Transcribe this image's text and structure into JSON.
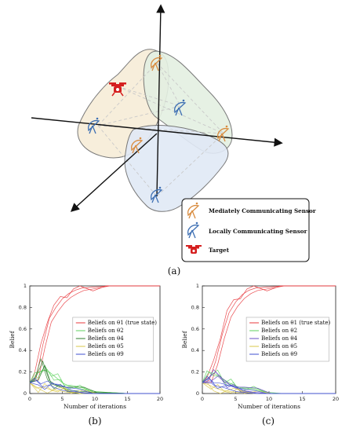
{
  "diagram": {
    "panel_label": "(a)",
    "legend": [
      {
        "label": "Mediately Communicating Sensor",
        "icon": "antenna-icon",
        "color": "#d98c3f"
      },
      {
        "label": "Locally Communicating Sensor",
        "icon": "antenna-icon",
        "color": "#3d6fb3"
      },
      {
        "label": "Target",
        "icon": "drone-icon",
        "color": "#d51f1f"
      }
    ],
    "region_colors": [
      "#f6ecd6",
      "#e6f1e6",
      "#e3ebf6"
    ]
  },
  "chart_data": [
    {
      "type": "line",
      "panel_label": "(b)",
      "xlabel": "Number of iterations",
      "ylabel": "Belief",
      "xlim": [
        0,
        20
      ],
      "ylim": [
        0,
        1
      ],
      "xticks": [
        "0",
        "5",
        "10",
        "15",
        "20"
      ],
      "yticks": [
        "0",
        "0.2",
        "0.4",
        "0.6",
        "0.8",
        "1"
      ],
      "legend_position": "right",
      "series": [
        {
          "name": "Beliefs on θ1 (true state)",
          "color": "#e8383d",
          "x": [
            0,
            1,
            2,
            3,
            4,
            5,
            6,
            7,
            8,
            10,
            12,
            15,
            20
          ],
          "values": [
            0.1,
            0.15,
            0.45,
            0.7,
            0.8,
            0.88,
            0.93,
            0.96,
            0.98,
            0.99,
            1,
            1,
            1
          ]
        },
        {
          "name": "Beliefs on θ2",
          "color": "#5fd15f",
          "x": [
            0,
            1,
            2,
            3,
            4,
            5,
            6,
            8,
            10,
            12,
            15,
            20
          ],
          "values": [
            0.1,
            0.18,
            0.22,
            0.2,
            0.15,
            0.1,
            0.07,
            0.04,
            0.02,
            0.01,
            0,
            0
          ]
        },
        {
          "name": "Beliefs on θ4",
          "color": "#2e7d2e",
          "x": [
            0,
            1,
            2,
            3,
            4,
            5,
            6,
            8,
            10,
            15,
            20
          ],
          "values": [
            0.1,
            0.16,
            0.3,
            0.12,
            0.08,
            0.05,
            0.03,
            0.02,
            0.01,
            0,
            0
          ]
        },
        {
          "name": "Beliefs on θ5",
          "color": "#d9c74a",
          "x": [
            0,
            1,
            2,
            3,
            4,
            5,
            6,
            8,
            10,
            15,
            20
          ],
          "values": [
            0.1,
            0.05,
            0.06,
            0.04,
            0.03,
            0.02,
            0.01,
            0.01,
            0,
            0,
            0
          ]
        },
        {
          "name": "Beliefs on θ9",
          "color": "#3f4fd1",
          "x": [
            0,
            1,
            2,
            3,
            4,
            5,
            6,
            8,
            10,
            15,
            20
          ],
          "values": [
            0.1,
            0.12,
            0.06,
            0.08,
            0.05,
            0.03,
            0.02,
            0.01,
            0,
            0,
            0
          ]
        }
      ]
    },
    {
      "type": "line",
      "panel_label": "(c)",
      "xlabel": "Number of iterations",
      "ylabel": "Belief",
      "xlim": [
        0,
        20
      ],
      "ylim": [
        0,
        1
      ],
      "xticks": [
        "0",
        "5",
        "10",
        "15",
        "20"
      ],
      "yticks": [
        "0",
        "0.2",
        "0.4",
        "0.6",
        "0.8",
        "1"
      ],
      "legend_position": "right",
      "series": [
        {
          "name": "Beliefs on θ1 (true state)",
          "color": "#e8383d",
          "x": [
            0,
            1,
            2,
            3,
            4,
            5,
            6,
            7,
            8,
            10,
            12,
            15,
            20
          ],
          "values": [
            0.1,
            0.12,
            0.3,
            0.55,
            0.75,
            0.85,
            0.92,
            0.96,
            0.98,
            0.99,
            1,
            1,
            1
          ]
        },
        {
          "name": "Beliefs on θ2",
          "color": "#5fd15f",
          "x": [
            0,
            1,
            2,
            3,
            4,
            5,
            6,
            8,
            10,
            12,
            15,
            20
          ],
          "values": [
            0.1,
            0.2,
            0.18,
            0.14,
            0.1,
            0.07,
            0.05,
            0.03,
            0.01,
            0,
            0,
            0
          ]
        },
        {
          "name": "Beliefs on θ4",
          "color": "#6a4fc4",
          "x": [
            0,
            1,
            2,
            3,
            4,
            5,
            6,
            8,
            10,
            15,
            20
          ],
          "values": [
            0.1,
            0.15,
            0.2,
            0.14,
            0.09,
            0.05,
            0.03,
            0.01,
            0,
            0,
            0
          ]
        },
        {
          "name": "Beliefs on θ5",
          "color": "#d9c74a",
          "x": [
            0,
            1,
            2,
            3,
            4,
            5,
            6,
            8,
            10,
            15,
            20
          ],
          "values": [
            0.1,
            0.08,
            0.05,
            0.03,
            0.02,
            0.01,
            0.01,
            0,
            0,
            0,
            0
          ]
        },
        {
          "name": "Beliefs on θ9",
          "color": "#3f4fd1",
          "x": [
            0,
            1,
            2,
            3,
            4,
            5,
            6,
            8,
            10,
            15,
            20
          ],
          "values": [
            0.1,
            0.14,
            0.07,
            0.06,
            0.04,
            0.02,
            0.01,
            0,
            0,
            0,
            0
          ]
        }
      ]
    }
  ]
}
